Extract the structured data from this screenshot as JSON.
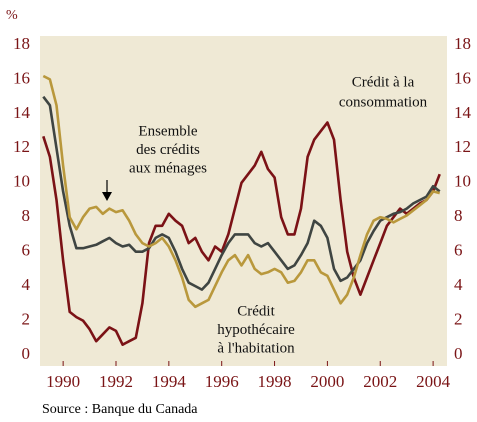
{
  "chart_data": {
    "type": "line",
    "y_unit": "%",
    "source": "Source : Banque du Canada",
    "x": [
      1989.25,
      1989.5,
      1989.75,
      1990,
      1990.25,
      1990.5,
      1990.75,
      1991,
      1991.25,
      1991.5,
      1991.75,
      1992,
      1992.25,
      1992.5,
      1992.75,
      1993,
      1993.25,
      1993.5,
      1993.75,
      1994,
      1994.25,
      1994.5,
      1994.75,
      1995,
      1995.25,
      1995.5,
      1995.75,
      1996,
      1996.25,
      1996.5,
      1996.75,
      1997,
      1997.25,
      1997.5,
      1997.75,
      1998,
      1998.25,
      1998.5,
      1998.75,
      1999,
      1999.25,
      1999.5,
      1999.75,
      2000,
      2000.25,
      2000.5,
      2000.75,
      2001,
      2001.25,
      2001.5,
      2001.75,
      2002,
      2002.25,
      2002.5,
      2002.75,
      2003,
      2003.25,
      2003.5,
      2003.75,
      2004,
      2004.25
    ],
    "series": [
      {
        "color": "#7b1216",
        "values": [
          12.7,
          11.5,
          9,
          5.5,
          2.5,
          2.2,
          2.0,
          1.5,
          0.8,
          1.2,
          1.6,
          1.4,
          0.6,
          0.8,
          1.0,
          3,
          6.5,
          7.5,
          7.5,
          8.2,
          7.8,
          7.5,
          6.5,
          6.8,
          6.0,
          5.5,
          6.3,
          6.0,
          7.0,
          8.5,
          10,
          10.5,
          11,
          11.8,
          10.8,
          10.3,
          8,
          7,
          7,
          8.5,
          11.5,
          12.5,
          13,
          13.5,
          12.5,
          9,
          6,
          4.5,
          3.5,
          4.5,
          5.5,
          6.5,
          7.5,
          8,
          8.5,
          8.2,
          8.5,
          8.8,
          9.0,
          9.5,
          10.5
        ]
      },
      {
        "color": "#3f4542",
        "values": [
          15,
          14.5,
          12,
          9.5,
          7.5,
          6.2,
          6.2,
          6.3,
          6.4,
          6.6,
          6.8,
          6.5,
          6.3,
          6.4,
          6.0,
          6.0,
          6.2,
          6.8,
          7.0,
          6.8,
          6.0,
          5.0,
          4.2,
          4.0,
          3.8,
          4.2,
          5.0,
          5.8,
          6.5,
          7.0,
          7.0,
          7.0,
          6.5,
          6.3,
          6.5,
          6.0,
          5.5,
          5.0,
          5.2,
          5.8,
          6.5,
          7.8,
          7.5,
          6.8,
          5.0,
          4.3,
          4.5,
          5.0,
          5.5,
          6.5,
          7.2,
          7.8,
          8.0,
          8.2,
          8.3,
          8.5,
          8.8,
          9.0,
          9.2,
          9.8,
          9.5
        ]
      },
      {
        "color": "#b9983c",
        "values": [
          16.2,
          16,
          14.5,
          11,
          8,
          7.3,
          8.0,
          8.5,
          8.6,
          8.2,
          8.5,
          8.3,
          8.4,
          7.8,
          7.0,
          6.5,
          6.3,
          6.5,
          6.8,
          6.3,
          5.5,
          4.5,
          3.2,
          2.8,
          3.0,
          3.2,
          4.0,
          4.8,
          5.5,
          5.8,
          5.2,
          5.8,
          5.0,
          4.7,
          4.8,
          5.0,
          4.8,
          4.2,
          4.3,
          4.8,
          5.5,
          5.5,
          4.8,
          4.6,
          3.8,
          3.0,
          3.5,
          4.5,
          5.8,
          7,
          7.8,
          8.0,
          7.9,
          7.7,
          7.9,
          8.1,
          8.4,
          8.7,
          9.0,
          9.5,
          9.4
        ]
      }
    ],
    "annotations": [
      {
        "lines": [
          "Crédit à la",
          "consommation"
        ]
      },
      {
        "lines": [
          "Ensemble",
          "des crédits",
          "aux ménages"
        ]
      },
      {
        "lines": [
          "Crédit",
          "hypothécaire",
          "à l'habitation"
        ]
      }
    ],
    "xlim": [
      1989.2,
      2004.45
    ],
    "xticks": [
      1990,
      1992,
      1994,
      1996,
      1998,
      2000,
      2002,
      2004
    ],
    "ylim": [
      0,
      18
    ],
    "yticks": [
      0,
      2,
      4,
      6,
      8,
      10,
      12,
      14,
      16,
      18
    ]
  }
}
